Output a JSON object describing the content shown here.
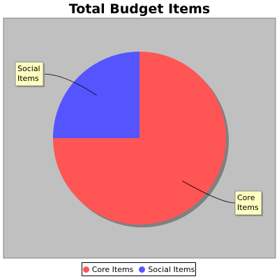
{
  "chart_data": {
    "type": "pie",
    "title": "Total Budget Items",
    "categories": [
      "Core Items",
      "Social Items"
    ],
    "values": [
      75,
      25
    ],
    "colors": [
      "#ff5555",
      "#5555ff"
    ],
    "plot_background": "#c0c0c0",
    "label_box_color": "#ffffc0",
    "labels": [
      {
        "lines": [
          "Core",
          "Items"
        ]
      },
      {
        "lines": [
          "Social",
          "Items"
        ]
      }
    ],
    "legend": {
      "placement": "bottom",
      "items": [
        {
          "label": "Core Items",
          "color": "#ff5555"
        },
        {
          "label": "Social Items",
          "color": "#5555ff"
        }
      ]
    }
  }
}
